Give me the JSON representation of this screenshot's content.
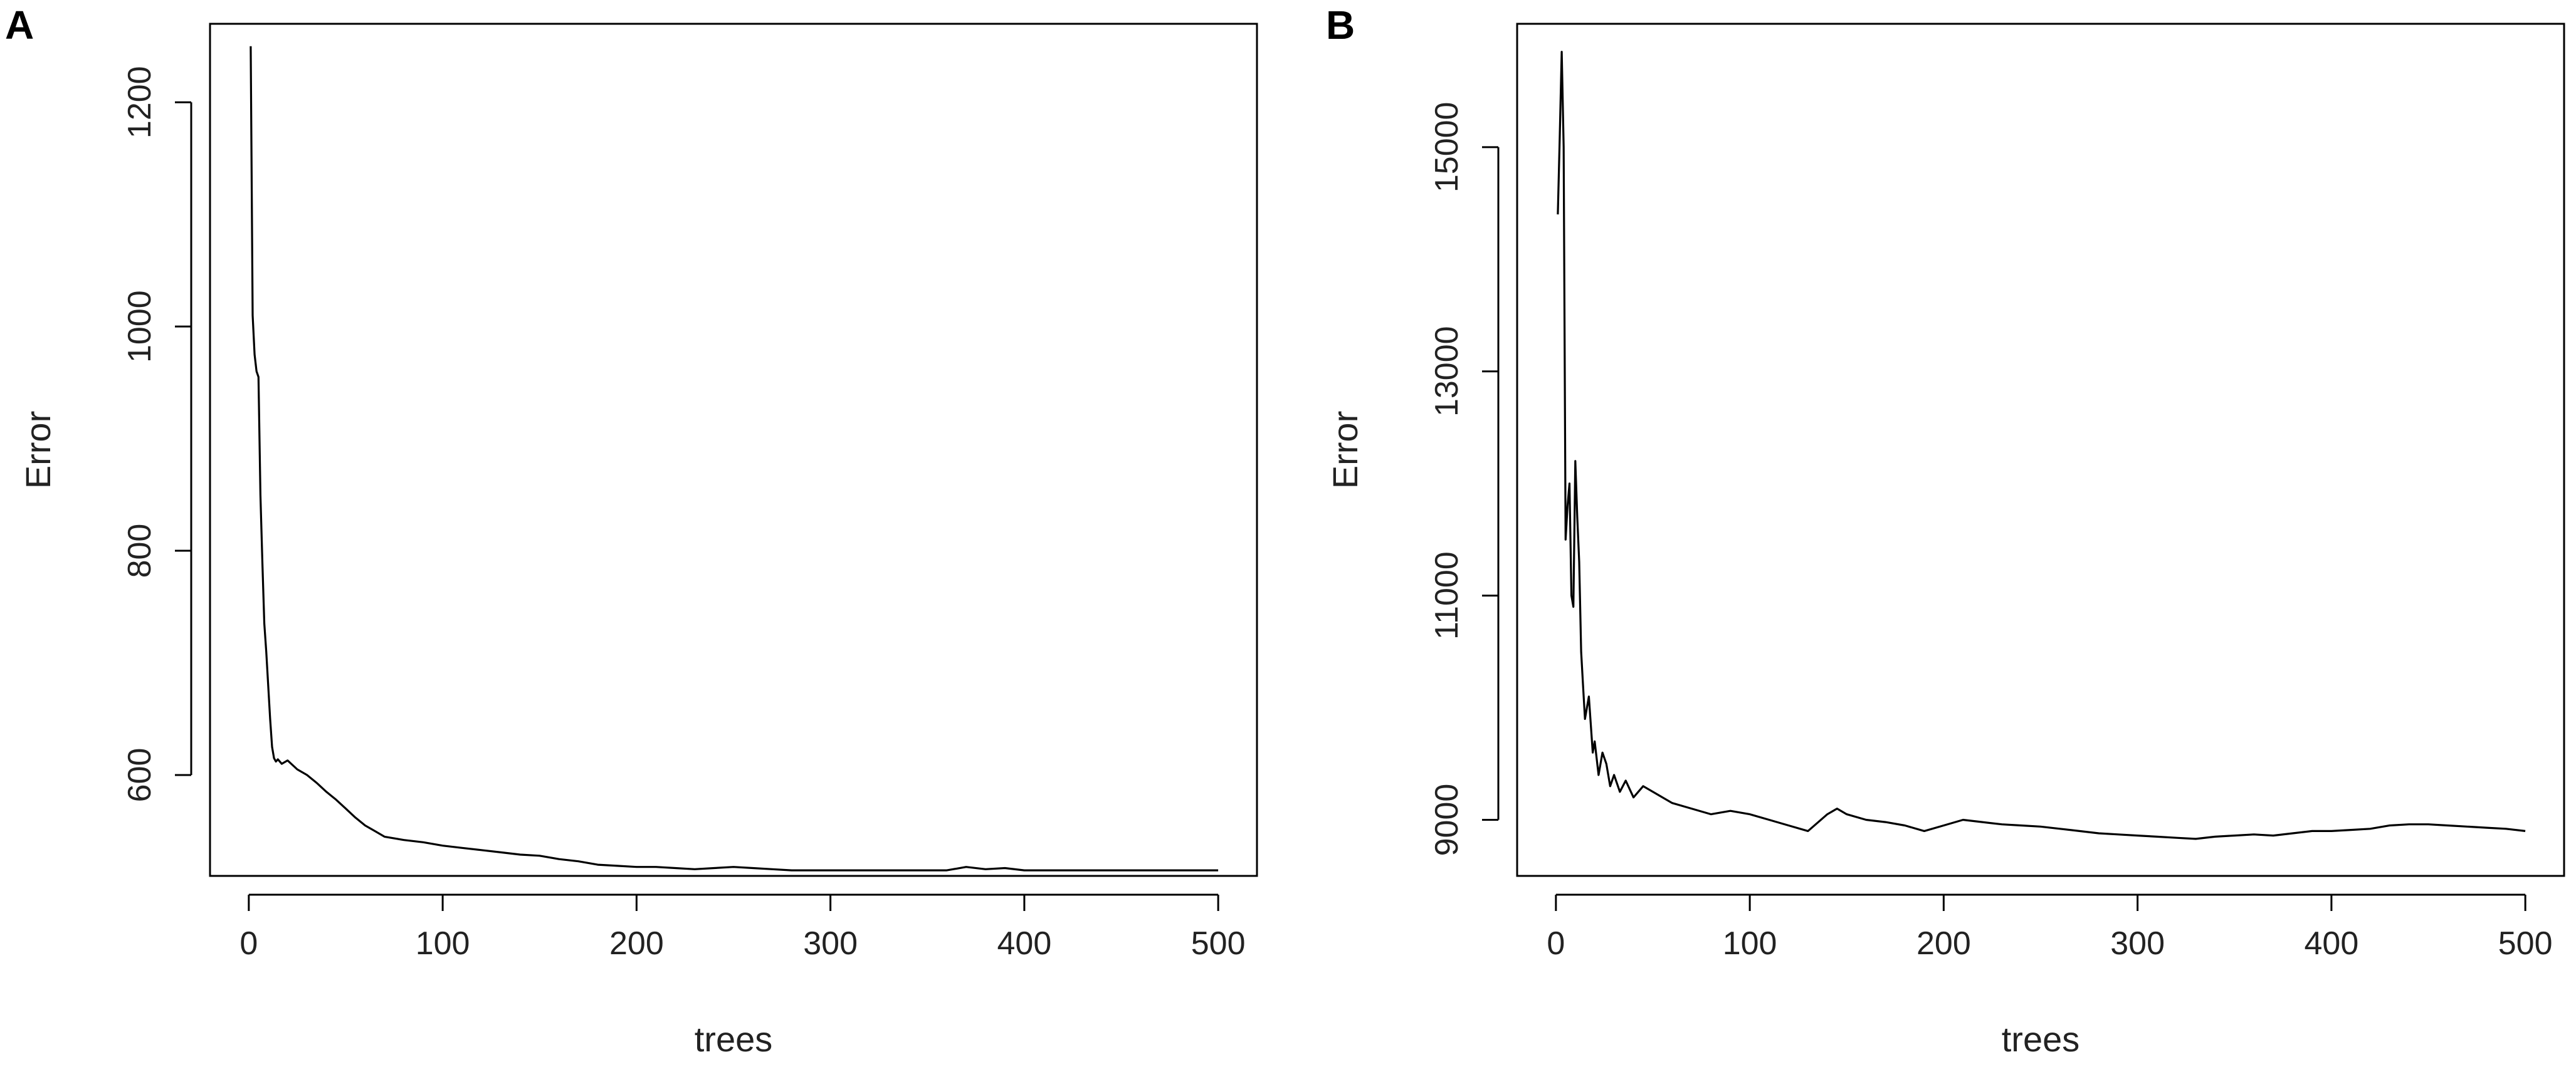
{
  "chart_data": [
    {
      "type": "line",
      "panel_label": "A",
      "xlabel": "trees",
      "ylabel": "Error",
      "xlim": [
        -20,
        520
      ],
      "ylim": [
        510,
        1270
      ],
      "xticks": [
        0,
        100,
        200,
        300,
        400,
        500
      ],
      "yticks": [
        600,
        800,
        1000,
        1200
      ],
      "grid": false,
      "x": [
        1,
        2,
        3,
        4,
        5,
        6,
        7,
        8,
        9,
        10,
        11,
        12,
        13,
        14,
        15,
        17,
        20,
        25,
        30,
        35,
        40,
        45,
        50,
        55,
        60,
        65,
        70,
        80,
        90,
        100,
        110,
        120,
        130,
        140,
        150,
        160,
        170,
        180,
        190,
        200,
        210,
        220,
        230,
        240,
        250,
        260,
        270,
        280,
        290,
        300,
        320,
        340,
        360,
        370,
        380,
        390,
        400,
        420,
        440,
        460,
        480,
        500
      ],
      "y": [
        1250,
        1010,
        975,
        960,
        955,
        850,
        790,
        735,
        710,
        680,
        650,
        625,
        615,
        612,
        614,
        610,
        613,
        605,
        600,
        593,
        585,
        578,
        570,
        562,
        555,
        550,
        545,
        542,
        540,
        537,
        535,
        533,
        531,
        529,
        528,
        525,
        523,
        520,
        519,
        518,
        518,
        517,
        516,
        517,
        518,
        517,
        516,
        515,
        515,
        515,
        515,
        515,
        515,
        518,
        516,
        517,
        515,
        515,
        515,
        515,
        515,
        515
      ]
    },
    {
      "type": "line",
      "panel_label": "B",
      "xlabel": "trees",
      "ylabel": "Error",
      "xlim": [
        -20,
        520
      ],
      "ylim": [
        8500,
        16100
      ],
      "xticks": [
        0,
        100,
        200,
        300,
        400,
        500
      ],
      "yticks": [
        9000,
        11000,
        13000,
        15000
      ],
      "grid": false,
      "x": [
        1,
        2,
        3,
        4,
        5,
        6,
        7,
        8,
        9,
        10,
        11,
        12,
        13,
        14,
        15,
        17,
        19,
        20,
        22,
        24,
        26,
        28,
        30,
        33,
        36,
        40,
        45,
        50,
        55,
        60,
        70,
        80,
        90,
        100,
        110,
        120,
        130,
        140,
        145,
        150,
        160,
        170,
        180,
        190,
        200,
        210,
        220,
        230,
        240,
        250,
        260,
        270,
        280,
        290,
        300,
        310,
        320,
        330,
        340,
        350,
        360,
        370,
        380,
        390,
        400,
        410,
        420,
        430,
        440,
        450,
        460,
        470,
        480,
        490,
        500
      ],
      "y": [
        14400,
        15100,
        15850,
        15000,
        11500,
        11800,
        12000,
        11000,
        10900,
        12200,
        11700,
        11300,
        10500,
        10200,
        9900,
        10100,
        9600,
        9700,
        9400,
        9600,
        9500,
        9300,
        9400,
        9250,
        9350,
        9200,
        9300,
        9250,
        9200,
        9150,
        9100,
        9050,
        9080,
        9050,
        9000,
        8950,
        8900,
        9050,
        9100,
        9050,
        9000,
        8980,
        8950,
        8900,
        8950,
        9000,
        8980,
        8960,
        8950,
        8940,
        8920,
        8900,
        8880,
        8870,
        8860,
        8850,
        8840,
        8830,
        8850,
        8860,
        8870,
        8860,
        8880,
        8900,
        8900,
        8910,
        8920,
        8950,
        8960,
        8960,
        8950,
        8940,
        8930,
        8920,
        8900
      ]
    }
  ]
}
